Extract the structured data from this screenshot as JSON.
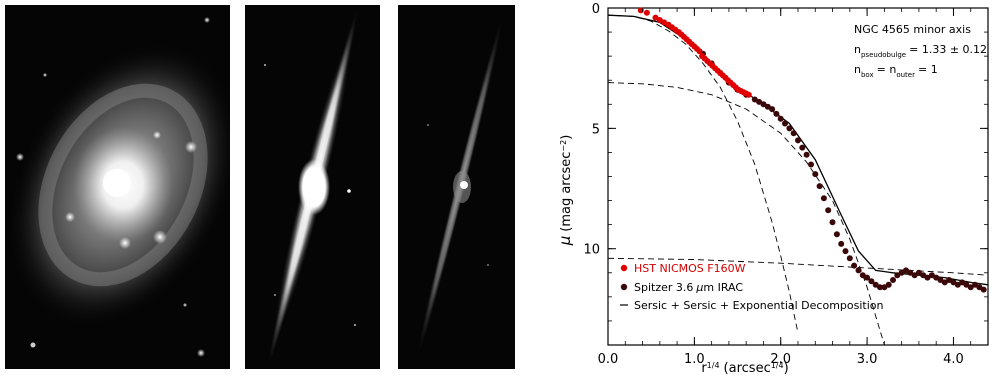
{
  "images": [
    {
      "name": "face-on-galaxy"
    },
    {
      "name": "edge-on-galaxy-bright"
    },
    {
      "name": "edge-on-galaxy-faint"
    }
  ],
  "annotation": {
    "object": "NGC 4565 minor axis",
    "n_pseudobulge_prefix": "n",
    "n_pseudobulge_sub": "pseudobulge",
    "n_pseudobulge_value": "= 1.33 ± 0.12",
    "n_box_prefix": "n",
    "n_box_sub": "box",
    "n_box_mid": "= n",
    "n_outer_sub": "outer",
    "n_outer_value": "= 1"
  },
  "chart_data": {
    "type": "scatter",
    "xlabel_main": "r",
    "xlabel_exp": "1/4",
    "xlabel_unit": "(arcsec",
    "xlabel_unit_exp": "1/4",
    "xlabel_close": ")",
    "ylabel_mu": "μ",
    "ylabel_unit": "(mag arcsec",
    "ylabel_unit_exp": "−2",
    "ylabel_close": ")",
    "xlim": [
      0.0,
      4.4
    ],
    "ylim": [
      14,
      0
    ],
    "x_ticks": [
      0.0,
      1.0,
      2.0,
      3.0,
      4.0
    ],
    "x_tick_labels": [
      "0.0",
      "1.0",
      "2.0",
      "3.0",
      "4.0"
    ],
    "y_ticks": [
      0,
      5,
      10
    ],
    "y_tick_labels": [
      "0",
      "5",
      "10"
    ],
    "legend_position": "bottom-left",
    "legend": {
      "hst": "HST NICMOS F160W",
      "spitzer_pre": "Spitzer 3.6",
      "spitzer_mu": "μ",
      "spitzer_post": "m IRAC",
      "model": "Sersic + Sersic + Exponential Decomposition"
    },
    "colors": {
      "hst": "#e00000",
      "spitzer": "#3a0808",
      "model": "#000000"
    },
    "series": [
      {
        "name": "HST NICMOS F160W",
        "x": [
          0.38,
          0.45,
          0.55,
          0.6,
          0.65,
          0.7,
          0.74,
          0.78,
          0.82,
          0.85,
          0.88,
          0.91,
          0.94,
          0.97,
          1.0,
          1.03,
          1.06,
          1.09,
          1.12,
          1.15,
          1.18,
          1.21,
          1.24,
          1.27,
          1.3,
          1.33,
          1.36,
          1.39,
          1.42,
          1.45,
          1.48,
          1.51,
          1.54,
          1.57,
          1.6,
          1.63
        ],
        "y": [
          0.1,
          0.2,
          0.4,
          0.5,
          0.6,
          0.7,
          0.8,
          0.9,
          1.0,
          1.1,
          1.2,
          1.3,
          1.4,
          1.5,
          1.6,
          1.7,
          1.8,
          2.0,
          2.1,
          2.2,
          2.3,
          2.4,
          2.5,
          2.6,
          2.7,
          2.8,
          2.9,
          3.0,
          3.1,
          3.2,
          3.3,
          3.4,
          3.45,
          3.5,
          3.55,
          3.6
        ]
      },
      {
        "name": "Spitzer 3.6 μm IRAC",
        "x": [
          1.1,
          1.2,
          1.3,
          1.4,
          1.5,
          1.6,
          1.7,
          1.75,
          1.8,
          1.85,
          1.9,
          1.95,
          2.0,
          2.05,
          2.1,
          2.15,
          2.2,
          2.25,
          2.3,
          2.35,
          2.4,
          2.45,
          2.5,
          2.55,
          2.6,
          2.65,
          2.7,
          2.75,
          2.8,
          2.85,
          2.9,
          2.95,
          3.0,
          3.05,
          3.1,
          3.15,
          3.2,
          3.25,
          3.3,
          3.35,
          3.4,
          3.45,
          3.5,
          3.55,
          3.6,
          3.65,
          3.7,
          3.75,
          3.8,
          3.85,
          3.9,
          3.95,
          4.0,
          4.05,
          4.1,
          4.15,
          4.2,
          4.25,
          4.3,
          4.35
        ],
        "y": [
          1.9,
          2.3,
          2.7,
          3.1,
          3.4,
          3.6,
          3.8,
          3.9,
          4.0,
          4.1,
          4.2,
          4.4,
          4.6,
          4.8,
          5.0,
          5.2,
          5.5,
          5.8,
          6.1,
          6.5,
          6.9,
          7.4,
          7.9,
          8.4,
          8.9,
          9.4,
          9.8,
          10.1,
          10.4,
          10.7,
          10.9,
          11.1,
          11.2,
          11.35,
          11.5,
          11.6,
          11.6,
          11.5,
          11.3,
          11.1,
          11.0,
          10.9,
          11.0,
          11.1,
          11.0,
          11.1,
          11.2,
          11.1,
          11.2,
          11.3,
          11.4,
          11.3,
          11.4,
          11.5,
          11.4,
          11.5,
          11.6,
          11.5,
          11.6,
          11.7
        ]
      }
    ],
    "model_curves": [
      {
        "name": "pseudobulge",
        "style": "dashed",
        "x": [
          0.0,
          0.3,
          0.5,
          0.7,
          0.9,
          1.1,
          1.3,
          1.5,
          1.7,
          1.9,
          2.0,
          2.1,
          2.2
        ],
        "y": [
          0.3,
          0.35,
          0.55,
          0.95,
          1.5,
          2.3,
          3.3,
          4.7,
          6.5,
          8.9,
          10.3,
          11.8,
          13.5
        ]
      },
      {
        "name": "box",
        "style": "dashed",
        "x": [
          0.0,
          0.4,
          0.8,
          1.2,
          1.6,
          2.0,
          2.3,
          2.6,
          2.8,
          3.0,
          3.1,
          3.2
        ],
        "y": [
          3.1,
          3.15,
          3.3,
          3.6,
          4.2,
          5.2,
          6.4,
          8.0,
          9.6,
          11.6,
          12.8,
          14.0
        ]
      },
      {
        "name": "outer",
        "style": "dashed",
        "x": [
          0.0,
          1.0,
          2.0,
          3.0,
          4.0,
          4.4
        ],
        "y": [
          10.4,
          10.45,
          10.6,
          10.8,
          11.0,
          11.1
        ]
      },
      {
        "name": "total",
        "style": "solid",
        "x": [
          0.0,
          0.3,
          0.6,
          0.9,
          1.2,
          1.5,
          1.8,
          2.1,
          2.4,
          2.7,
          2.9,
          3.1,
          3.3,
          3.6,
          3.9,
          4.2,
          4.4
        ],
        "y": [
          0.3,
          0.35,
          0.6,
          1.3,
          2.3,
          3.3,
          4.0,
          4.8,
          6.3,
          8.6,
          10.1,
          10.9,
          11.0,
          11.1,
          11.2,
          11.4,
          11.5
        ]
      }
    ]
  }
}
